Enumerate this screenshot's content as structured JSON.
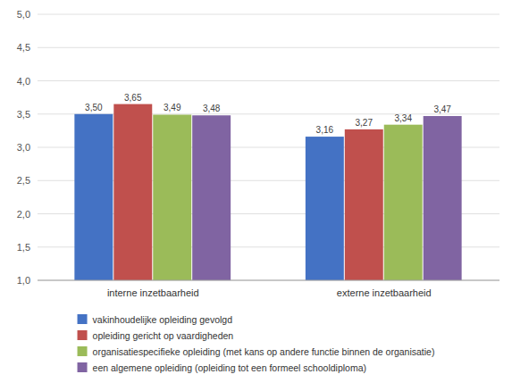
{
  "chart_data": {
    "type": "bar",
    "categories": [
      "interne inzetbaarheid",
      "externe inzetbaarheid"
    ],
    "series": [
      {
        "name": "vakinhoudelijke opleiding gevolgd",
        "color": "#4472C4",
        "values": [
          3.5,
          3.16
        ],
        "value_labels": [
          "3,50",
          "3,16"
        ]
      },
      {
        "name": "opleiding gericht op vaardigheden",
        "color": "#C0504D",
        "values": [
          3.65,
          3.27
        ],
        "value_labels": [
          "3,65",
          "3,27"
        ]
      },
      {
        "name": "organisatiespecifieke opleiding (met kans op andere functie binnen de organisatie)",
        "color": "#9BBB59",
        "values": [
          3.49,
          3.34
        ],
        "value_labels": [
          "3,49",
          "3,34"
        ]
      },
      {
        "name": "een algemene opleiding (opleiding tot een formeel schooldiploma)",
        "color": "#8064A2",
        "values": [
          3.48,
          3.47
        ],
        "value_labels": [
          "3,48",
          "3,47"
        ]
      }
    ],
    "ylim": [
      1.0,
      5.0
    ],
    "yticks": [
      {
        "value": 1.0,
        "label": "1,0"
      },
      {
        "value": 1.5,
        "label": "1,5"
      },
      {
        "value": 2.0,
        "label": "2,0"
      },
      {
        "value": 2.5,
        "label": "2,5"
      },
      {
        "value": 3.0,
        "label": "3,0"
      },
      {
        "value": 3.5,
        "label": "3,5"
      },
      {
        "value": 4.0,
        "label": "4,0"
      },
      {
        "value": 4.5,
        "label": "4,5"
      },
      {
        "value": 5.0,
        "label": "5,0"
      }
    ],
    "grid": true,
    "legend": "bottom",
    "data_labels": true
  }
}
